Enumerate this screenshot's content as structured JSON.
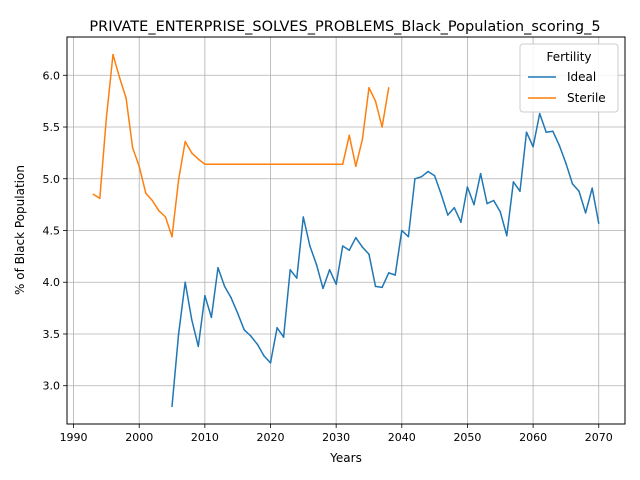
{
  "chart_data": {
    "type": "line",
    "title": "PRIVATE_ENTERPRISE_SOLVES_PROBLEMS_Black_Population_scoring_5",
    "xlabel": "Years",
    "ylabel": "% of Black Population",
    "xlim": [
      1989,
      2074
    ],
    "ylim": [
      2.63,
      6.37
    ],
    "xticks": [
      1990,
      2000,
      2010,
      2020,
      2030,
      2040,
      2050,
      2060,
      2070
    ],
    "yticks": [
      3.0,
      3.5,
      4.0,
      4.5,
      5.0,
      5.5,
      6.0
    ],
    "xtick_labels": [
      "1990",
      "2000",
      "2010",
      "2020",
      "2030",
      "2040",
      "2050",
      "2060",
      "2070"
    ],
    "ytick_labels": [
      "3.0",
      "3.5",
      "4.0",
      "4.5",
      "5.0",
      "5.5",
      "6.0"
    ],
    "grid": true,
    "legend": {
      "title": "Fertility",
      "placement": "top-right"
    },
    "series": [
      {
        "name": "Ideal",
        "color": "#1f77b4",
        "x": [
          2005,
          2006,
          2007,
          2008,
          2009,
          2010,
          2011,
          2012,
          2013,
          2014,
          2015,
          2016,
          2017,
          2018,
          2019,
          2020,
          2021,
          2022,
          2023,
          2024,
          2025,
          2026,
          2027,
          2028,
          2029,
          2030,
          2031,
          2032,
          2033,
          2034,
          2035,
          2036,
          2037,
          2038,
          2039,
          2040,
          2041,
          2042,
          2043,
          2044,
          2045,
          2046,
          2047,
          2048,
          2049,
          2050,
          2051,
          2052,
          2053,
          2054,
          2055,
          2056,
          2057,
          2058,
          2059,
          2060,
          2061,
          2062,
          2063,
          2064,
          2065,
          2066,
          2067,
          2068,
          2069,
          2070
        ],
        "y": [
          2.8,
          3.5,
          4.0,
          3.64,
          3.38,
          3.87,
          3.66,
          4.14,
          3.96,
          3.85,
          3.7,
          3.54,
          3.48,
          3.4,
          3.29,
          3.22,
          3.56,
          3.47,
          4.12,
          4.04,
          4.63,
          4.35,
          4.17,
          3.94,
          4.12,
          3.98,
          4.35,
          4.31,
          4.43,
          4.34,
          4.27,
          3.96,
          3.95,
          4.09,
          4.07,
          4.5,
          4.44,
          5.0,
          5.02,
          5.07,
          5.03,
          4.85,
          4.65,
          4.72,
          4.58,
          4.92,
          4.75,
          5.05,
          4.76,
          4.79,
          4.68,
          4.45,
          4.97,
          4.88,
          5.45,
          5.31,
          5.63,
          5.45,
          5.46,
          5.32,
          5.15,
          4.95,
          4.88,
          4.67,
          4.91,
          4.57
        ]
      },
      {
        "name": "Sterile",
        "color": "#ff7f0e",
        "x": [
          1993,
          1994,
          1995,
          1996,
          1997,
          1998,
          1999,
          2000,
          2001,
          2002,
          2003,
          2004,
          2005,
          2006,
          2007,
          2008,
          2009,
          2010,
          2011,
          2012,
          2013,
          2014,
          2015,
          2016,
          2017,
          2018,
          2019,
          2020,
          2021,
          2022,
          2023,
          2024,
          2025,
          2026,
          2027,
          2028,
          2029,
          2030,
          2031,
          2032,
          2033,
          2034,
          2035,
          2036,
          2037,
          2038
        ],
        "y": [
          4.85,
          4.81,
          5.59,
          6.2,
          5.98,
          5.78,
          5.3,
          5.12,
          4.86,
          4.79,
          4.69,
          4.63,
          4.44,
          4.99,
          5.36,
          5.25,
          5.19,
          5.14,
          5.14,
          5.14,
          5.14,
          5.14,
          5.14,
          5.14,
          5.14,
          5.14,
          5.14,
          5.14,
          5.14,
          5.14,
          5.14,
          5.14,
          5.14,
          5.14,
          5.14,
          5.14,
          5.14,
          5.14,
          5.14,
          5.42,
          5.12,
          5.38,
          5.88,
          5.75,
          5.5,
          5.88
        ]
      }
    ]
  }
}
